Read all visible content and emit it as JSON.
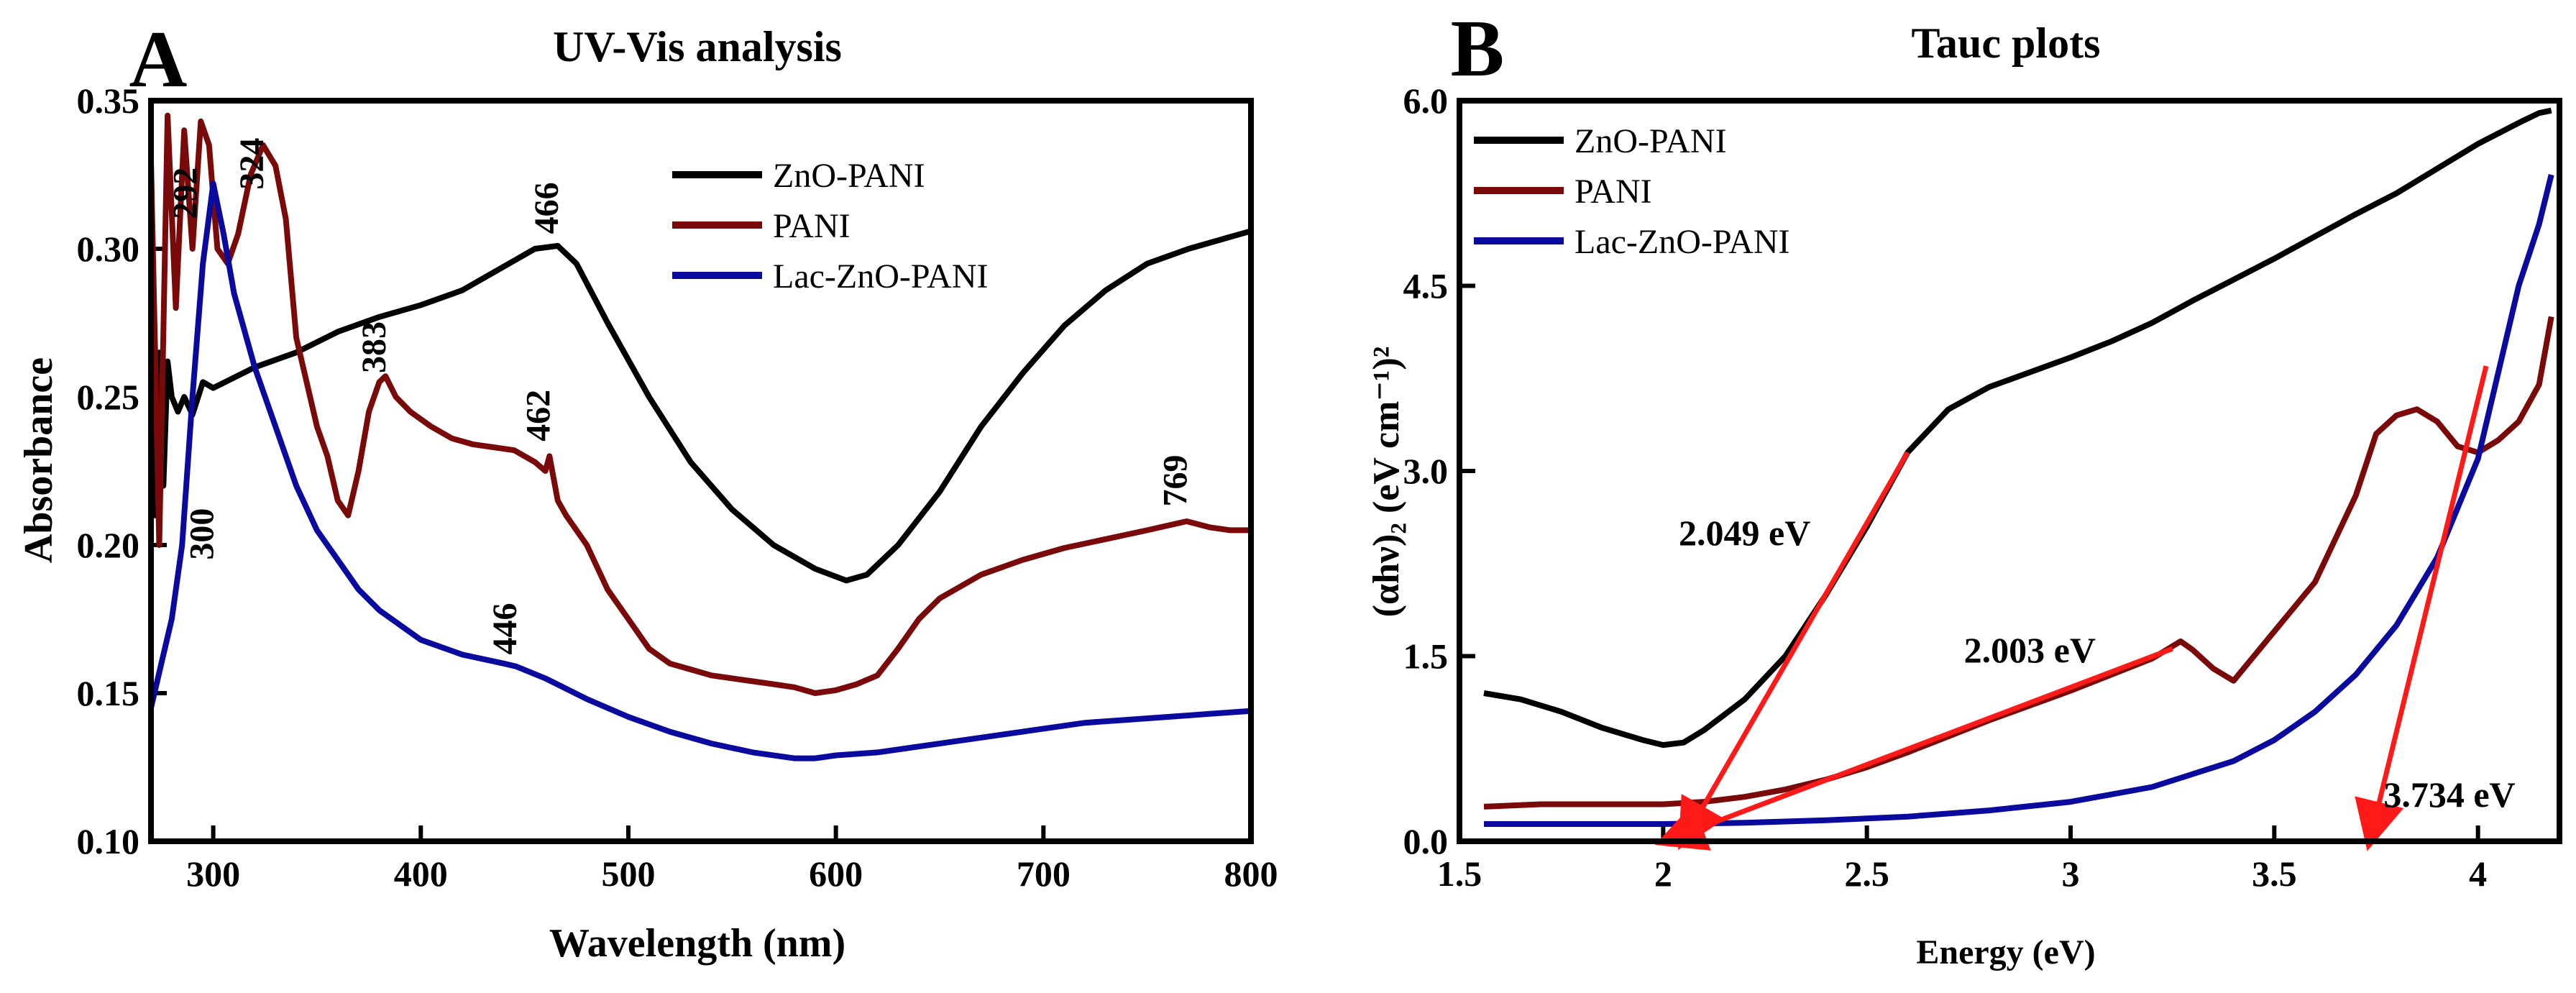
{
  "chart_data": [
    {
      "type": "line",
      "panel_letter": "A",
      "title": "UV-Vis analysis",
      "xlabel": "Wavelength (nm)",
      "ylabel": "Absorbance",
      "xlim": [
        270,
        800
      ],
      "ylim": [
        0.1,
        0.35
      ],
      "xticks": [
        300,
        400,
        500,
        600,
        700,
        800
      ],
      "yticks": [
        0.1,
        0.15,
        0.2,
        0.25,
        0.3,
        0.35
      ],
      "ytick_labels": [
        "0.10",
        "0.15",
        "0.20",
        "0.25",
        "0.30",
        "0.35"
      ],
      "legend_position": "top-right",
      "series": [
        {
          "name": "ZnO-PANI",
          "color": "#000000",
          "x": [
            270,
            272,
            274,
            276,
            278,
            280,
            283,
            286,
            290,
            295,
            300,
            320,
            340,
            360,
            380,
            400,
            420,
            440,
            455,
            466,
            475,
            490,
            510,
            530,
            550,
            570,
            590,
            605,
            615,
            630,
            650,
            670,
            690,
            710,
            730,
            750,
            770,
            790,
            800
          ],
          "y": [
            0.255,
            0.21,
            0.265,
            0.22,
            0.262,
            0.25,
            0.245,
            0.25,
            0.244,
            0.255,
            0.253,
            0.26,
            0.265,
            0.272,
            0.277,
            0.281,
            0.286,
            0.294,
            0.3,
            0.301,
            0.295,
            0.275,
            0.25,
            0.228,
            0.212,
            0.2,
            0.192,
            0.188,
            0.19,
            0.2,
            0.218,
            0.24,
            0.258,
            0.274,
            0.286,
            0.295,
            0.3,
            0.304,
            0.306
          ]
        },
        {
          "name": "PANI",
          "color": "#7a0a0a",
          "x": [
            270,
            274,
            278,
            282,
            286,
            290,
            294,
            298,
            302,
            307,
            312,
            318,
            324,
            330,
            335,
            340,
            345,
            350,
            355,
            360,
            365,
            370,
            375,
            380,
            383,
            388,
            395,
            405,
            415,
            425,
            435,
            445,
            455,
            460,
            462,
            466,
            470,
            480,
            490,
            500,
            510,
            520,
            530,
            540,
            550,
            560,
            570,
            580,
            590,
            600,
            610,
            620,
            630,
            640,
            650,
            670,
            690,
            710,
            730,
            750,
            769,
            780,
            790,
            800
          ],
          "y": [
            0.33,
            0.2,
            0.345,
            0.28,
            0.34,
            0.3,
            0.343,
            0.335,
            0.3,
            0.295,
            0.305,
            0.325,
            0.335,
            0.328,
            0.31,
            0.27,
            0.255,
            0.24,
            0.23,
            0.215,
            0.21,
            0.225,
            0.245,
            0.255,
            0.257,
            0.25,
            0.245,
            0.24,
            0.236,
            0.234,
            0.233,
            0.232,
            0.228,
            0.225,
            0.23,
            0.215,
            0.21,
            0.2,
            0.185,
            0.175,
            0.165,
            0.16,
            0.158,
            0.156,
            0.155,
            0.154,
            0.153,
            0.152,
            0.15,
            0.151,
            0.153,
            0.156,
            0.165,
            0.175,
            0.182,
            0.19,
            0.195,
            0.199,
            0.202,
            0.205,
            0.208,
            0.206,
            0.205,
            0.205
          ]
        },
        {
          "name": "Lac-ZnO-PANI",
          "color": "#0a0a9e",
          "x": [
            270,
            275,
            280,
            285,
            290,
            295,
            300,
            305,
            310,
            320,
            330,
            340,
            350,
            360,
            370,
            380,
            400,
            420,
            440,
            446,
            460,
            480,
            500,
            520,
            540,
            560,
            580,
            590,
            600,
            620,
            640,
            660,
            680,
            700,
            720,
            740,
            760,
            780,
            800
          ],
          "y": [
            0.145,
            0.16,
            0.175,
            0.2,
            0.25,
            0.295,
            0.322,
            0.305,
            0.285,
            0.26,
            0.24,
            0.22,
            0.205,
            0.195,
            0.185,
            0.178,
            0.168,
            0.163,
            0.16,
            0.159,
            0.155,
            0.148,
            0.142,
            0.137,
            0.133,
            0.13,
            0.128,
            0.128,
            0.129,
            0.13,
            0.132,
            0.134,
            0.136,
            0.138,
            0.14,
            0.141,
            0.142,
            0.143,
            0.144
          ]
        }
      ],
      "annotations": [
        {
          "text": "292",
          "x": 292,
          "y": 0.31
        },
        {
          "text": "324",
          "x": 324,
          "y": 0.32
        },
        {
          "text": "466",
          "x": 466,
          "y": 0.305
        },
        {
          "text": "383",
          "x": 383,
          "y": 0.258
        },
        {
          "text": "462",
          "x": 462,
          "y": 0.235
        },
        {
          "text": "769",
          "x": 769,
          "y": 0.213
        },
        {
          "text": "300",
          "x": 300,
          "y": 0.195
        },
        {
          "text": "446",
          "x": 446,
          "y": 0.163
        }
      ]
    },
    {
      "type": "line",
      "panel_letter": "B",
      "title": "Tauc plots",
      "xlabel": "Energy (eV)",
      "ylabel": "(αhν)₂ (eV cm⁻¹)²",
      "xlim": [
        1.5,
        4.2
      ],
      "ylim": [
        0.0,
        6.0
      ],
      "xticks": [
        1.5,
        2.0,
        2.5,
        3.0,
        3.5,
        4.0
      ],
      "yticks": [
        0.0,
        1.5,
        3.0,
        4.5,
        6.0
      ],
      "ytick_labels": [
        "0.0",
        "1.5",
        "3.0",
        "4.5",
        "6.0"
      ],
      "legend_position": "top-left",
      "series": [
        {
          "name": "ZnO-PANI",
          "color": "#000000",
          "x": [
            1.56,
            1.65,
            1.75,
            1.85,
            1.95,
            2.0,
            2.05,
            2.1,
            2.2,
            2.3,
            2.4,
            2.5,
            2.6,
            2.7,
            2.8,
            2.9,
            3.0,
            3.1,
            3.2,
            3.3,
            3.4,
            3.5,
            3.6,
            3.7,
            3.8,
            3.9,
            4.0,
            4.1,
            4.15,
            4.18
          ],
          "y": [
            1.2,
            1.15,
            1.05,
            0.92,
            0.82,
            0.78,
            0.8,
            0.9,
            1.15,
            1.5,
            2.0,
            2.55,
            3.15,
            3.5,
            3.68,
            3.8,
            3.92,
            4.05,
            4.2,
            4.38,
            4.55,
            4.72,
            4.9,
            5.08,
            5.25,
            5.45,
            5.65,
            5.82,
            5.9,
            5.92
          ]
        },
        {
          "name": "PANI",
          "color": "#7a0a0a",
          "x": [
            1.56,
            1.7,
            1.8,
            1.9,
            2.0,
            2.1,
            2.2,
            2.3,
            2.4,
            2.5,
            2.6,
            2.7,
            2.8,
            2.9,
            3.0,
            3.1,
            3.2,
            3.27,
            3.3,
            3.35,
            3.4,
            3.45,
            3.5,
            3.6,
            3.7,
            3.75,
            3.8,
            3.85,
            3.9,
            3.95,
            4.0,
            4.05,
            4.1,
            4.15,
            4.18
          ],
          "y": [
            0.28,
            0.3,
            0.3,
            0.3,
            0.3,
            0.32,
            0.36,
            0.42,
            0.5,
            0.6,
            0.72,
            0.85,
            0.98,
            1.1,
            1.22,
            1.35,
            1.48,
            1.62,
            1.55,
            1.4,
            1.3,
            1.5,
            1.7,
            2.1,
            2.8,
            3.3,
            3.45,
            3.5,
            3.4,
            3.2,
            3.15,
            3.25,
            3.4,
            3.7,
            4.25
          ]
        },
        {
          "name": "Lac-ZnO-PANI",
          "color": "#0a0a9e",
          "x": [
            1.56,
            1.8,
            2.0,
            2.2,
            2.4,
            2.6,
            2.8,
            3.0,
            3.2,
            3.4,
            3.5,
            3.6,
            3.7,
            3.8,
            3.9,
            4.0,
            4.05,
            4.1,
            4.15,
            4.18
          ],
          "y": [
            0.14,
            0.14,
            0.14,
            0.15,
            0.17,
            0.2,
            0.25,
            0.32,
            0.44,
            0.65,
            0.82,
            1.05,
            1.35,
            1.75,
            2.3,
            3.1,
            3.8,
            4.5,
            5.0,
            5.4
          ]
        }
      ],
      "fit_lines": [
        {
          "label": "2.049 eV",
          "from": [
            2.6,
            3.15
          ],
          "to": [
            2.049,
            0.0
          ],
          "color": "#ff1a1a"
        },
        {
          "label": "2.003 eV",
          "from": [
            3.25,
            1.56
          ],
          "to": [
            2.003,
            0.0
          ],
          "color": "#ff1a1a"
        },
        {
          "label": "3.734 eV",
          "from": [
            4.02,
            3.85
          ],
          "to": [
            3.734,
            0.0
          ],
          "color": "#ff1a1a"
        }
      ],
      "fit_labels": [
        {
          "text": "2.049 eV",
          "x": 2.2,
          "y": 2.4
        },
        {
          "text": "2.003 eV",
          "x": 2.9,
          "y": 1.45
        },
        {
          "text": "3.734 eV",
          "x": 3.93,
          "y": 0.28
        }
      ]
    }
  ]
}
